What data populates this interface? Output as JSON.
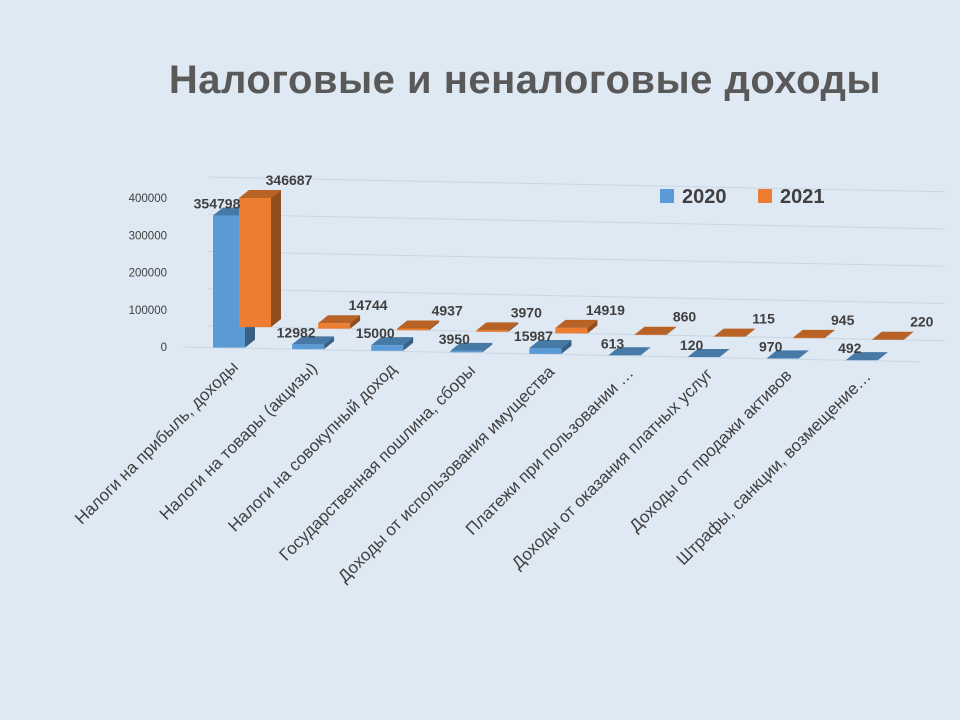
{
  "chart_data": {
    "type": "bar",
    "title": "Налоговые и неналоговые доходы",
    "xlabel": "",
    "ylabel": "",
    "ylim": [
      0,
      400000
    ],
    "yticks": [
      "0",
      "100000",
      "200000",
      "300000",
      "400000"
    ],
    "categories": [
      "Налоги на прибыль, доходы",
      "Налоги на товары (акцизы)",
      "Налоги на совокупный доход",
      "Государственная  пошлина, сборы",
      "Доходы от использования имущества",
      "Платежи при  пользовании …",
      "Доходы от оказания платных услуг",
      "Доходы от продажи активов",
      "Штрафы, санкции, возмещение…"
    ],
    "series": [
      {
        "name": "2020",
        "color": "#5b9bd5",
        "values": [
          354798,
          12982,
          15000,
          3950,
          15987,
          613,
          120,
          970,
          492
        ],
        "labels": [
          "354798",
          "12982",
          "15000",
          "3950",
          "15987",
          "613",
          "120",
          "970",
          "492"
        ]
      },
      {
        "name": "2021",
        "color": "#ed7d31",
        "values": [
          346687,
          14744,
          4937,
          3970,
          14919,
          860,
          115,
          945,
          220
        ],
        "labels": [
          "346687",
          "14744",
          "4937",
          "3970",
          "14919",
          "860",
          "115",
          "945",
          "220"
        ]
      }
    ],
    "grid": true,
    "legend": "top-right"
  }
}
